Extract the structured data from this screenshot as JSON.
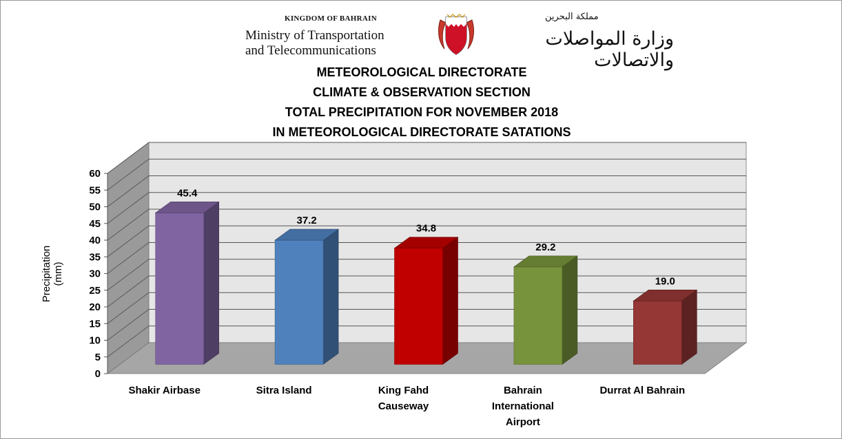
{
  "header": {
    "kingdom": "KINGDOM OF BAHRAIN",
    "ministry_line1": "Ministry of Transportation",
    "ministry_line2": "and Telecommunications",
    "arabic_kingdom": "مملكة البحرين",
    "arabic_ministry": "وزارة المواصلات والاتصالات"
  },
  "colors": {
    "wall": "#e6e6e6",
    "side_wall": "#9a9a9a",
    "floor": "#a6a6a6",
    "grid": "#555555"
  },
  "chart_data": {
    "type": "bar",
    "title_lines": [
      "METEOROLOGICAL DIRECTORATE",
      "CLIMATE & OBSERVATION SECTION",
      "TOTAL PRECIPITATION FOR NOVEMBER 2018",
      "IN METEOROLOGICAL DIRECTORATE SATATIONS"
    ],
    "ylabel": "Precipitation (mm)",
    "ylim": [
      0,
      60
    ],
    "yticks": [
      0,
      5,
      10,
      15,
      20,
      25,
      30,
      35,
      40,
      45,
      50,
      55,
      60
    ],
    "grid": true,
    "three_d": true,
    "categories": [
      "Shakir Airbase",
      "Sitra Island",
      "King Fahd\nCauseway",
      "Bahrain\nInternational\nAirport",
      "Durrat Al Bahrain"
    ],
    "values": [
      45.4,
      37.2,
      34.8,
      29.2,
      19.0
    ],
    "data_labels": [
      "45.4",
      "37.2",
      "34.8",
      "29.2",
      "19.0"
    ],
    "bar_colors": [
      "#8064a2",
      "#4f81bd",
      "#c00000",
      "#77933c",
      "#953735"
    ]
  }
}
